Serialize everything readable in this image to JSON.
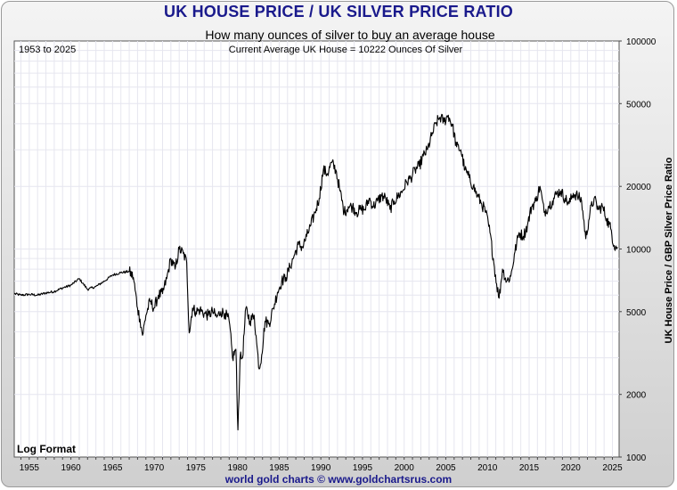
{
  "chart_data": {
    "type": "line",
    "title": "UK HOUSE PRICE / UK SILVER PRICE RATIO",
    "subtitle": "How many ounces of silver to buy an average house",
    "range_label": "1953 to 2025",
    "current_note": "Current Average UK House = 10222 Ounces Of Silver",
    "scale_note": "Log Format",
    "ylabel": "UK House Price / GBP Silver Price Ratio",
    "xlabel": "",
    "yscale": "log",
    "ylim": [
      1000,
      100000
    ],
    "xlim": [
      1953.2,
      2025.8
    ],
    "grid": true,
    "x_ticks": [
      "1955",
      "1960",
      "1965",
      "1970",
      "1975",
      "1980",
      "1985",
      "1990",
      "1995",
      "2000",
      "2005",
      "2010",
      "2015",
      "2020",
      "2025"
    ],
    "y_ticks": [
      "100000",
      "50000",
      "20000",
      "10000",
      "5000",
      "2000",
      "1000"
    ],
    "series": [
      {
        "x": [
          1953.2,
          1954,
          1955,
          1956,
          1957,
          1958,
          1959,
          1960,
          1961,
          1962,
          1963,
          1964,
          1965,
          1966,
          1967,
          1967.5,
          1968,
          1968.3,
          1968.6,
          1969,
          1969.5,
          1970,
          1970.5,
          1971,
          1971.5,
          1972,
          1972.5,
          1973,
          1973.5,
          1973.9,
          1974.2,
          1974.6,
          1975,
          1975.5,
          1976,
          1976.5,
          1977,
          1977.5,
          1978,
          1978.5,
          1979,
          1979.4,
          1979.8,
          1980.05,
          1980.3,
          1980.6,
          1981,
          1981.5,
          1982,
          1982.3,
          1982.6,
          1982.9,
          1983.3,
          1983.8,
          1984.3,
          1984.8,
          1985.3,
          1985.8,
          1986.3,
          1986.8,
          1987.3,
          1987.8,
          1988.3,
          1988.8,
          1989.3,
          1989.8,
          1990.3,
          1990.8,
          1991.3,
          1991.8,
          1992.3,
          1992.8,
          1993.3,
          1993.8,
          1994.3,
          1994.8,
          1995.3,
          1995.8,
          1996.3,
          1996.8,
          1997.3,
          1997.8,
          1998.3,
          1998.8,
          1999.3,
          1999.8,
          2000.3,
          2000.8,
          2001.3,
          2001.8,
          2002.3,
          2002.8,
          2003.3,
          2003.8,
          2004.3,
          2004.8,
          2005.3,
          2005.8,
          2006.3,
          2006.8,
          2007.3,
          2007.8,
          2008.3,
          2008.8,
          2009.3,
          2009.8,
          2010.3,
          2010.7,
          2011.1,
          2011.4,
          2011.8,
          2012.3,
          2012.8,
          2013.3,
          2013.8,
          2014.3,
          2014.8,
          2015.3,
          2015.8,
          2016.3,
          2016.8,
          2017.3,
          2017.8,
          2018.3,
          2018.8,
          2019.3,
          2019.8,
          2020.3,
          2020.8,
          2021.3,
          2021.8,
          2022.3,
          2022.8,
          2023.3,
          2023.8,
          2024.3,
          2024.8,
          2025.2,
          2025.6
        ],
        "y": [
          6100,
          6000,
          6050,
          6000,
          6150,
          6250,
          6500,
          6700,
          7200,
          6400,
          6600,
          7000,
          7500,
          7700,
          7800,
          7300,
          5200,
          4600,
          3850,
          4800,
          5600,
          5200,
          6000,
          6100,
          7200,
          9000,
          8000,
          10000,
          9500,
          8600,
          3950,
          5200,
          5000,
          5100,
          4900,
          4800,
          5000,
          4700,
          5000,
          4900,
          4500,
          3000,
          3300,
          1350,
          3000,
          3000,
          5200,
          4500,
          4800,
          3500,
          2650,
          3100,
          4500,
          4400,
          5200,
          6200,
          7000,
          7300,
          8200,
          9300,
          10500,
          10200,
          11500,
          13000,
          15000,
          17500,
          24000,
          23000,
          26000,
          24000,
          19000,
          15000,
          16000,
          16000,
          15000,
          15500,
          15500,
          17500,
          16000,
          17000,
          18000,
          17500,
          15500,
          17000,
          18000,
          19000,
          21000,
          22000,
          24000,
          25000,
          28000,
          30000,
          35000,
          40000,
          43000,
          41000,
          44000,
          39000,
          31000,
          30000,
          24000,
          22000,
          20000,
          18000,
          16500,
          15000,
          12000,
          9000,
          6800,
          5800,
          8000,
          7000,
          7400,
          9700,
          12000,
          11500,
          13000,
          16000,
          17000,
          20000,
          15000,
          16000,
          17000,
          18500,
          19000,
          17500,
          16500,
          18500,
          18000,
          17000,
          11200,
          15000,
          17500,
          15500,
          16000,
          14000,
          12500,
          10400,
          10222
        ]
      }
    ]
  },
  "footer": {
    "credit": "world gold charts © www.goldchartsrus.com"
  }
}
